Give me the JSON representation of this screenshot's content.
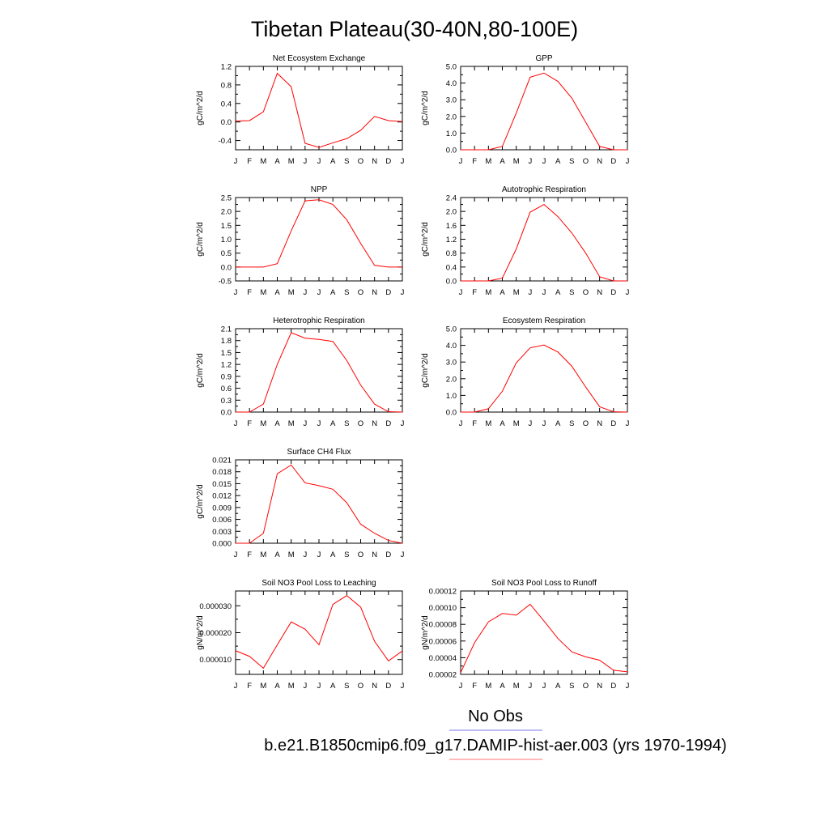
{
  "figure": {
    "title": "Tibetan Plateau(30-40N,80-100E)",
    "legend": [
      {
        "label": "No Obs",
        "color": "#7777ee"
      },
      {
        "label": "b.e21.B1850cmip6.f09_g17.DAMIP-hist-aer.003 (yrs 1970-1994)",
        "color": "#ff7777"
      }
    ],
    "series_color": "#ff0000"
  },
  "chart_data": [
    {
      "type": "line",
      "title": "Net Ecosystem Exchange",
      "ylabel": "gC/m^2/d",
      "categories": [
        "J",
        "F",
        "M",
        "A",
        "M",
        "J",
        "J",
        "A",
        "S",
        "O",
        "N",
        "D",
        "J"
      ],
      "values": [
        0.02,
        0.03,
        0.22,
        1.05,
        0.76,
        -0.46,
        -0.55,
        -0.45,
        -0.36,
        -0.18,
        0.12,
        0.03,
        0.01
      ],
      "ylim": [
        -0.6,
        1.2
      ],
      "yticks": [
        -0.4,
        0.0,
        0.4,
        0.8,
        1.2
      ],
      "ytick_labels": [
        "-0.4",
        "0.0",
        "0.4",
        "0.8",
        "1.2"
      ]
    },
    {
      "type": "line",
      "title": "GPP",
      "ylabel": "gC/m^2/d",
      "categories": [
        "J",
        "F",
        "M",
        "A",
        "M",
        "J",
        "J",
        "A",
        "S",
        "O",
        "N",
        "D",
        "J"
      ],
      "values": [
        0.0,
        0.0,
        0.0,
        0.2,
        2.2,
        4.35,
        4.6,
        4.1,
        3.1,
        1.65,
        0.2,
        0.0,
        0.0
      ],
      "ylim": [
        0,
        5
      ],
      "yticks": [
        0,
        1,
        2,
        3,
        4,
        5
      ],
      "ytick_labels": [
        "0.0",
        "1.0",
        "2.0",
        "3.0",
        "4.0",
        "5.0"
      ]
    },
    {
      "type": "line",
      "title": "NPP",
      "ylabel": "gC/m^2/d",
      "categories": [
        "J",
        "F",
        "M",
        "A",
        "M",
        "J",
        "J",
        "A",
        "S",
        "O",
        "N",
        "D",
        "J"
      ],
      "values": [
        0.0,
        0.0,
        0.0,
        0.12,
        1.3,
        2.38,
        2.42,
        2.25,
        1.7,
        0.85,
        0.06,
        0.0,
        0.0
      ],
      "ylim": [
        -0.5,
        2.5
      ],
      "yticks": [
        -0.5,
        0.0,
        0.5,
        1.0,
        1.5,
        2.0,
        2.5
      ],
      "ytick_labels": [
        "-0.5",
        "0.0",
        "0.5",
        "1.0",
        "1.5",
        "2.0",
        "2.5"
      ]
    },
    {
      "type": "line",
      "title": "Autotrophic Respiration",
      "ylabel": "gC/m^2/d",
      "categories": [
        "J",
        "F",
        "M",
        "A",
        "M",
        "J",
        "J",
        "A",
        "S",
        "O",
        "N",
        "D",
        "J"
      ],
      "values": [
        0.0,
        0.0,
        0.0,
        0.08,
        0.92,
        1.98,
        2.2,
        1.85,
        1.38,
        0.8,
        0.12,
        0.0,
        0.0
      ],
      "ylim": [
        0,
        2.4
      ],
      "yticks": [
        0,
        0.4,
        0.8,
        1.2,
        1.6,
        2.0,
        2.4
      ],
      "ytick_labels": [
        "0.0",
        "0.4",
        "0.8",
        "1.2",
        "1.6",
        "2.0",
        "2.4"
      ]
    },
    {
      "type": "line",
      "title": "Heterotrophic Respiration",
      "ylabel": "gC/m^2/d",
      "categories": [
        "J",
        "F",
        "M",
        "A",
        "M",
        "J",
        "J",
        "A",
        "S",
        "O",
        "N",
        "D",
        "J"
      ],
      "values": [
        0.0,
        0.0,
        0.2,
        1.2,
        2.0,
        1.86,
        1.83,
        1.78,
        1.3,
        0.68,
        0.2,
        0.01,
        0.0
      ],
      "ylim": [
        0,
        2.1
      ],
      "yticks": [
        0,
        0.3,
        0.6,
        0.9,
        1.2,
        1.5,
        1.8,
        2.1
      ],
      "ytick_labels": [
        "0.0",
        "0.3",
        "0.6",
        "0.9",
        "1.2",
        "1.5",
        "1.8",
        "2.1"
      ]
    },
    {
      "type": "line",
      "title": "Ecosystem Respiration",
      "ylabel": "gC/m^2/d",
      "categories": [
        "J",
        "F",
        "M",
        "A",
        "M",
        "J",
        "J",
        "A",
        "S",
        "O",
        "N",
        "D",
        "J"
      ],
      "values": [
        0.0,
        0.0,
        0.2,
        1.25,
        2.95,
        3.85,
        4.02,
        3.6,
        2.75,
        1.5,
        0.32,
        0.02,
        0.0
      ],
      "ylim": [
        0,
        5
      ],
      "yticks": [
        0,
        1,
        2,
        3,
        4,
        5
      ],
      "ytick_labels": [
        "0.0",
        "1.0",
        "2.0",
        "3.0",
        "4.0",
        "5.0"
      ]
    },
    {
      "type": "line",
      "title": "Surface CH4 Flux",
      "ylabel": "gC/m^2/d",
      "categories": [
        "J",
        "F",
        "M",
        "A",
        "M",
        "J",
        "J",
        "A",
        "S",
        "O",
        "N",
        "D",
        "J"
      ],
      "values": [
        0.0,
        0.0,
        0.0025,
        0.0175,
        0.0197,
        0.0152,
        0.0145,
        0.0136,
        0.0102,
        0.0048,
        0.0025,
        0.0007,
        0.0
      ],
      "ylim": [
        0,
        0.021
      ],
      "yticks": [
        0,
        0.003,
        0.006,
        0.009,
        0.012,
        0.015,
        0.018,
        0.021
      ],
      "ytick_labels": [
        "0.000",
        "0.003",
        "0.006",
        "0.009",
        "0.012",
        "0.015",
        "0.018",
        "0.021"
      ]
    },
    {
      "type": "line",
      "title": "Soil NO3 Pool Loss to Leaching",
      "ylabel": "gN/m^2/d",
      "categories": [
        "J",
        "F",
        "M",
        "A",
        "M",
        "J",
        "J",
        "A",
        "S",
        "O",
        "N",
        "D",
        "J"
      ],
      "values": [
        1.33e-05,
        1.12e-05,
        6.8e-06,
        1.55e-05,
        2.4e-05,
        2.13e-05,
        1.55e-05,
        3.05e-05,
        3.38e-05,
        2.95e-05,
        1.68e-05,
        9.5e-06,
        1.32e-05
      ],
      "ylim": [
        4.5e-06,
        3.55e-05
      ],
      "yticks": [
        1e-05,
        2e-05,
        3e-05
      ],
      "ytick_labels": [
        "0.000010",
        "0.000020",
        "0.000030"
      ]
    },
    {
      "type": "line",
      "title": "Soil NO3 Pool Loss to Runoff",
      "ylabel": "gN/m^2/d",
      "categories": [
        "J",
        "F",
        "M",
        "A",
        "M",
        "J",
        "J",
        "A",
        "S",
        "O",
        "N",
        "D",
        "J"
      ],
      "values": [
        2.2e-05,
        5.8e-05,
        8.3e-05,
        9.3e-05,
        9.1e-05,
        0.000104,
        8.4e-05,
        6.3e-05,
        4.7e-05,
        4.1e-05,
        3.7e-05,
        2.5e-05,
        2.3e-05
      ],
      "ylim": [
        2e-05,
        0.00012
      ],
      "yticks": [
        2e-05,
        4e-05,
        6e-05,
        8e-05,
        0.0001,
        0.00012
      ],
      "ytick_labels": [
        "0.00002",
        "0.00004",
        "0.00006",
        "0.00008",
        "0.00010",
        "0.00012"
      ]
    }
  ]
}
